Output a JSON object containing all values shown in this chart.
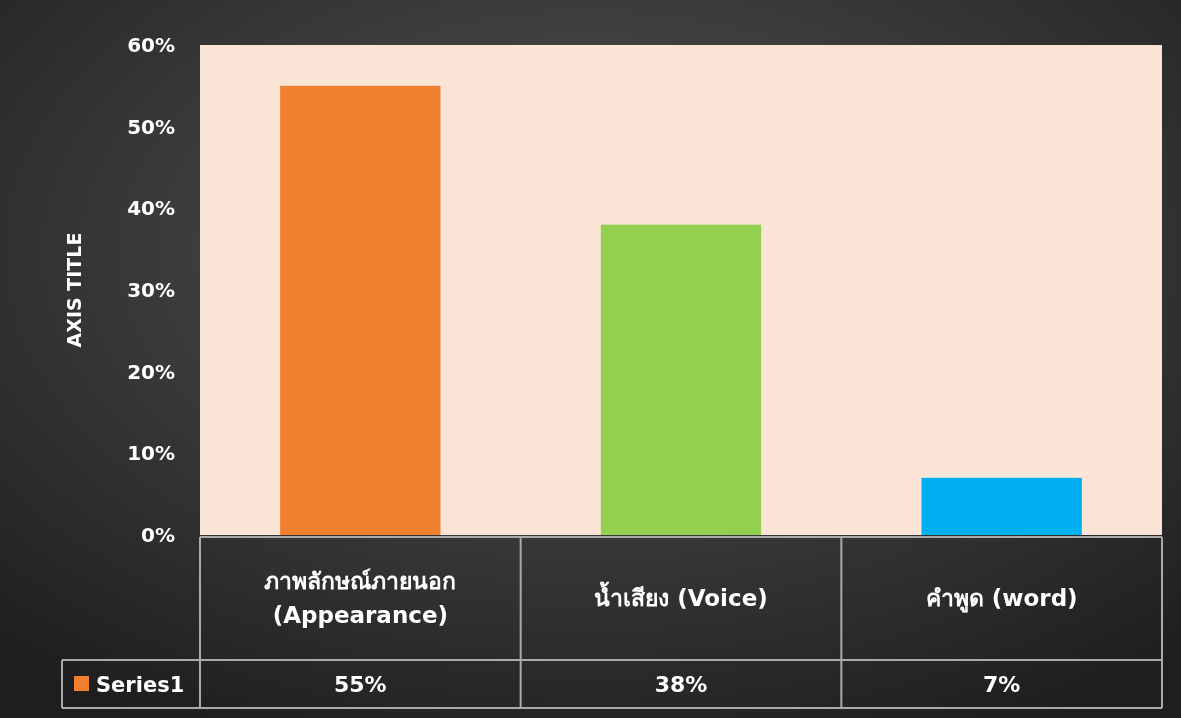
{
  "chart_data": {
    "type": "bar",
    "ylabel": "AXIS TITLE",
    "categories": [
      "ภาพลักษณ์ภายนอก (Appearance)",
      "น้ำเสียง (Voice)",
      "คำพูด (word)"
    ],
    "series": [
      {
        "name": "Series1",
        "color": "#f07f2f",
        "values": [
          55,
          38,
          7
        ],
        "colors": [
          "#f07f2f",
          "#92d050",
          "#00b0f0"
        ],
        "value_labels": [
          "55%",
          "38%",
          "7%"
        ]
      }
    ],
    "ylim": [
      0,
      60
    ],
    "yticks": [
      {
        "value": 0,
        "label": "0%"
      },
      {
        "value": 10,
        "label": "10%"
      },
      {
        "value": 20,
        "label": "20%"
      },
      {
        "value": 30,
        "label": "30%"
      },
      {
        "value": 40,
        "label": "40%"
      },
      {
        "value": 50,
        "label": "50%"
      },
      {
        "value": 60,
        "label": "60%"
      }
    ],
    "grid": false,
    "legend": "bottom left"
  }
}
